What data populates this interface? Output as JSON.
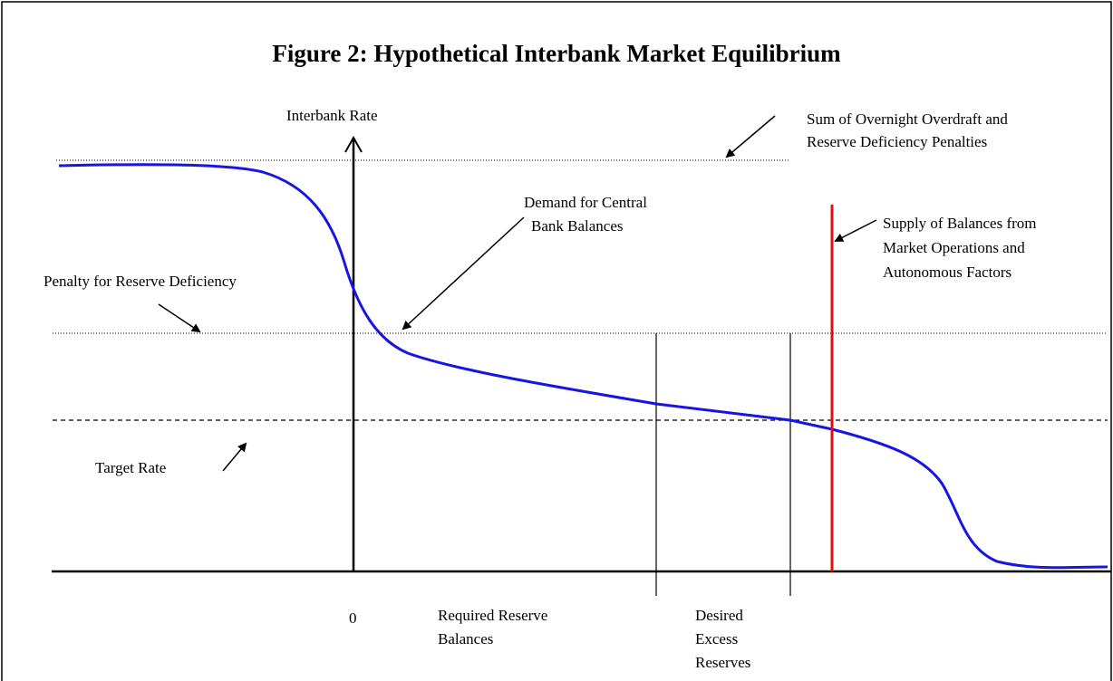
{
  "title": "Figure 2:  Hypothetical Interbank Market Equilibrium",
  "labels": {
    "y_axis": "Interbank Rate",
    "zero": "0",
    "sum_penalties": [
      "Sum of Overnight Overdraft and",
      "Reserve Deficiency Penalties"
    ],
    "demand": [
      "Demand for Central",
      "Bank Balances"
    ],
    "supply": [
      "Supply of Balances from",
      "Market Operations and",
      "Autonomous Factors"
    ],
    "penalty": "Penalty for Reserve Deficiency",
    "target": "Target Rate",
    "required": [
      "Required Reserve",
      "Balances"
    ],
    "excess": [
      "Desired",
      "Excess",
      "Reserves"
    ]
  }
}
